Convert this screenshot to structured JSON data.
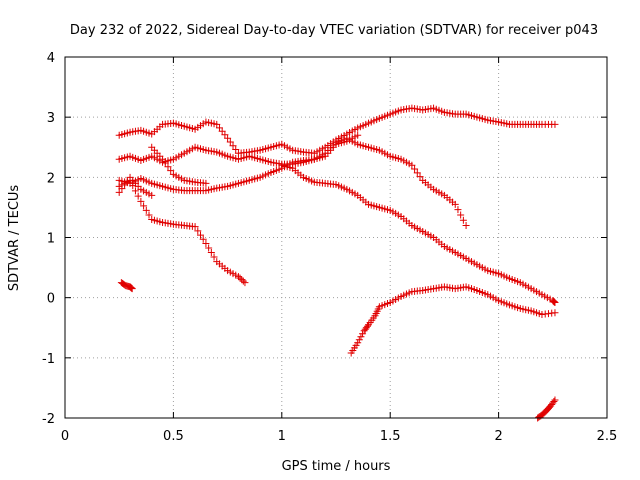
{
  "chart_data": {
    "type": "scatter",
    "title": "Day 232 of 2022, Sidereal Day-to-day VTEC variation (SDTVAR) for receiver p043",
    "xlabel": "GPS time / hours",
    "ylabel": "SDTVAR / TECUs",
    "xlim": [
      0,
      2.5
    ],
    "ylim": [
      -2,
      4
    ],
    "xticks": [
      0,
      0.5,
      1,
      1.5,
      2,
      2.5
    ],
    "xtick_labels": [
      "0",
      "0.5",
      "1",
      "1.5",
      "2",
      "2.5"
    ],
    "yticks": [
      -2,
      -1,
      0,
      1,
      2,
      3,
      4
    ],
    "ytick_labels": [
      "-2",
      "-1",
      "0",
      "1",
      "2",
      "3",
      "4"
    ],
    "grid": true,
    "marker": "+",
    "color": "#e00000",
    "series": [
      {
        "name": "arc1",
        "points": [
          [
            0.25,
            2.7
          ],
          [
            0.3,
            2.75
          ],
          [
            0.35,
            2.78
          ],
          [
            0.4,
            2.72
          ],
          [
            0.45,
            2.88
          ],
          [
            0.5,
            2.9
          ],
          [
            0.55,
            2.85
          ],
          [
            0.6,
            2.8
          ],
          [
            0.65,
            2.92
          ],
          [
            0.7,
            2.88
          ],
          [
            0.75,
            2.65
          ],
          [
            0.8,
            2.4
          ],
          [
            0.85,
            2.42
          ],
          [
            0.9,
            2.45
          ],
          [
            0.95,
            2.5
          ],
          [
            1.0,
            2.55
          ],
          [
            1.05,
            2.45
          ],
          [
            1.1,
            2.42
          ],
          [
            1.15,
            2.4
          ],
          [
            1.2,
            2.5
          ],
          [
            1.25,
            2.62
          ],
          [
            1.3,
            2.72
          ],
          [
            1.35,
            2.82
          ],
          [
            1.4,
            2.9
          ],
          [
            1.45,
            2.98
          ],
          [
            1.5,
            3.05
          ],
          [
            1.55,
            3.12
          ],
          [
            1.6,
            3.15
          ],
          [
            1.65,
            3.12
          ],
          [
            1.7,
            3.15
          ],
          [
            1.75,
            3.08
          ],
          [
            1.8,
            3.05
          ],
          [
            1.85,
            3.05
          ],
          [
            1.9,
            3.0
          ],
          [
            1.95,
            2.95
          ],
          [
            2.0,
            2.92
          ],
          [
            2.05,
            2.88
          ],
          [
            2.1,
            2.88
          ],
          [
            2.15,
            2.88
          ],
          [
            2.2,
            2.88
          ],
          [
            2.26,
            2.88
          ]
        ]
      },
      {
        "name": "arc2",
        "points": [
          [
            0.25,
            2.3
          ],
          [
            0.3,
            2.35
          ],
          [
            0.35,
            2.28
          ],
          [
            0.4,
            2.35
          ],
          [
            0.45,
            2.25
          ],
          [
            0.5,
            2.3
          ],
          [
            0.55,
            2.4
          ],
          [
            0.6,
            2.5
          ],
          [
            0.65,
            2.45
          ],
          [
            0.7,
            2.42
          ],
          [
            0.75,
            2.35
          ],
          [
            0.8,
            2.3
          ],
          [
            0.85,
            2.35
          ],
          [
            0.9,
            2.3
          ],
          [
            0.95,
            2.25
          ],
          [
            1.0,
            2.22
          ],
          [
            1.05,
            2.22
          ],
          [
            1.1,
            2.25
          ],
          [
            1.15,
            2.3
          ],
          [
            1.2,
            2.4
          ],
          [
            1.25,
            2.58
          ],
          [
            1.3,
            2.65
          ],
          [
            1.35,
            2.55
          ],
          [
            1.4,
            2.5
          ],
          [
            1.45,
            2.45
          ],
          [
            1.5,
            2.35
          ],
          [
            1.55,
            2.3
          ],
          [
            1.6,
            2.2
          ],
          [
            1.65,
            1.95
          ],
          [
            1.7,
            1.8
          ],
          [
            1.75,
            1.7
          ],
          [
            1.8,
            1.55
          ],
          [
            1.85,
            1.2
          ]
        ]
      },
      {
        "name": "arc3",
        "points": [
          [
            0.25,
            1.95
          ],
          [
            0.3,
            1.9
          ],
          [
            0.35,
            1.98
          ],
          [
            0.4,
            1.9
          ],
          [
            0.45,
            1.85
          ],
          [
            0.5,
            1.8
          ],
          [
            0.55,
            1.78
          ],
          [
            0.6,
            1.78
          ],
          [
            0.65,
            1.78
          ],
          [
            0.7,
            1.82
          ],
          [
            0.75,
            1.85
          ],
          [
            0.8,
            1.9
          ],
          [
            0.85,
            1.95
          ],
          [
            0.9,
            2.0
          ],
          [
            0.95,
            2.08
          ],
          [
            1.0,
            2.15
          ],
          [
            1.05,
            2.25
          ],
          [
            1.1,
            2.28
          ],
          [
            1.15,
            2.3
          ],
          [
            1.2,
            2.35
          ],
          [
            1.25,
            2.55
          ],
          [
            1.3,
            2.6
          ],
          [
            1.35,
            2.7
          ]
        ]
      },
      {
        "name": "arc4",
        "points": [
          [
            0.25,
            1.85
          ],
          [
            0.3,
            1.95
          ],
          [
            0.35,
            1.6
          ],
          [
            0.4,
            1.3
          ],
          [
            0.45,
            1.25
          ],
          [
            0.5,
            1.22
          ],
          [
            0.55,
            1.2
          ],
          [
            0.6,
            1.18
          ],
          [
            0.65,
            0.9
          ],
          [
            0.7,
            0.6
          ],
          [
            0.75,
            0.45
          ],
          [
            0.8,
            0.35
          ],
          [
            0.83,
            0.25
          ]
        ]
      },
      {
        "name": "arc5",
        "points": [
          [
            0.4,
            2.5
          ],
          [
            0.45,
            2.3
          ],
          [
            0.5,
            2.05
          ],
          [
            0.55,
            1.95
          ],
          [
            0.6,
            1.92
          ],
          [
            0.65,
            1.9
          ]
        ]
      },
      {
        "name": "arc6",
        "points": [
          [
            0.25,
            1.75
          ],
          [
            0.3,
            2.0
          ],
          [
            0.35,
            1.8
          ],
          [
            0.4,
            1.7
          ]
        ]
      },
      {
        "name": "arc7",
        "points": [
          [
            1.0,
            2.2
          ],
          [
            1.05,
            2.15
          ],
          [
            1.1,
            2.0
          ],
          [
            1.15,
            1.92
          ],
          [
            1.2,
            1.9
          ],
          [
            1.25,
            1.88
          ],
          [
            1.3,
            1.8
          ],
          [
            1.35,
            1.7
          ],
          [
            1.4,
            1.55
          ],
          [
            1.45,
            1.5
          ],
          [
            1.5,
            1.45
          ],
          [
            1.55,
            1.35
          ],
          [
            1.6,
            1.2
          ],
          [
            1.65,
            1.1
          ],
          [
            1.7,
            1.0
          ],
          [
            1.75,
            0.85
          ],
          [
            1.8,
            0.75
          ],
          [
            1.85,
            0.65
          ],
          [
            1.9,
            0.55
          ],
          [
            1.95,
            0.45
          ],
          [
            2.0,
            0.4
          ],
          [
            2.05,
            0.32
          ],
          [
            2.1,
            0.25
          ],
          [
            2.15,
            0.15
          ],
          [
            2.2,
            0.05
          ],
          [
            2.25,
            -0.05
          ],
          [
            2.26,
            -0.08
          ]
        ]
      },
      {
        "name": "arc8",
        "points": [
          [
            0.26,
            0.25
          ],
          [
            0.28,
            0.2
          ],
          [
            0.3,
            0.18
          ],
          [
            0.31,
            0.15
          ]
        ]
      },
      {
        "name": "arc9",
        "points": [
          [
            1.32,
            -0.92
          ],
          [
            1.35,
            -0.75
          ],
          [
            1.38,
            -0.55
          ],
          [
            1.4,
            -0.45
          ],
          [
            1.43,
            -0.3
          ],
          [
            1.45,
            -0.15
          ],
          [
            1.5,
            -0.08
          ],
          [
            1.55,
            0.02
          ],
          [
            1.6,
            0.1
          ],
          [
            1.65,
            0.12
          ],
          [
            1.7,
            0.15
          ],
          [
            1.75,
            0.18
          ],
          [
            1.8,
            0.15
          ],
          [
            1.85,
            0.18
          ],
          [
            1.9,
            0.12
          ],
          [
            1.95,
            0.05
          ],
          [
            2.0,
            -0.05
          ],
          [
            2.05,
            -0.12
          ],
          [
            2.1,
            -0.18
          ],
          [
            2.15,
            -0.22
          ],
          [
            2.2,
            -0.28
          ],
          [
            2.26,
            -0.25
          ]
        ]
      },
      {
        "name": "arc10",
        "points": [
          [
            2.18,
            -2.0
          ],
          [
            2.2,
            -1.95
          ],
          [
            2.22,
            -1.88
          ],
          [
            2.24,
            -1.8
          ],
          [
            2.26,
            -1.7
          ]
        ]
      }
    ]
  }
}
